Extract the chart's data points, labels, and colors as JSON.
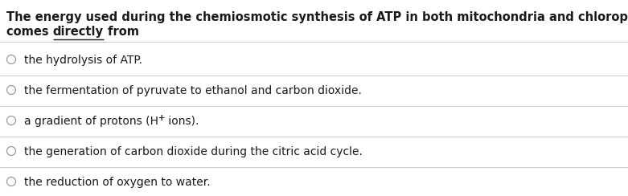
{
  "background_color": "#ffffff",
  "question_line1": "The energy used during the chemiosmotic synthesis of ATP in both mitochondria and chloroplasts",
  "question_line2_pre": "comes ",
  "question_line2_underline": "directly",
  "question_line2_post": " from",
  "options": [
    "the hydrolysis of ATP.",
    "the fermentation of pyruvate to ethanol and carbon dioxide.",
    "a gradient of protons (H⁺ ions).",
    "the generation of carbon dioxide during the citric acid cycle.",
    "the reduction of oxygen to water."
  ],
  "option3_pre": "a gradient of protons (H",
  "option3_sup": "+",
  "option3_post": " ions).",
  "question_fontsize": 10.5,
  "option_fontsize": 10.0,
  "text_color": "#1a1a1a",
  "line_color": "#c8c8c8",
  "circle_color": "#999999",
  "fig_width": 7.81,
  "fig_height": 2.44,
  "dpi": 100
}
